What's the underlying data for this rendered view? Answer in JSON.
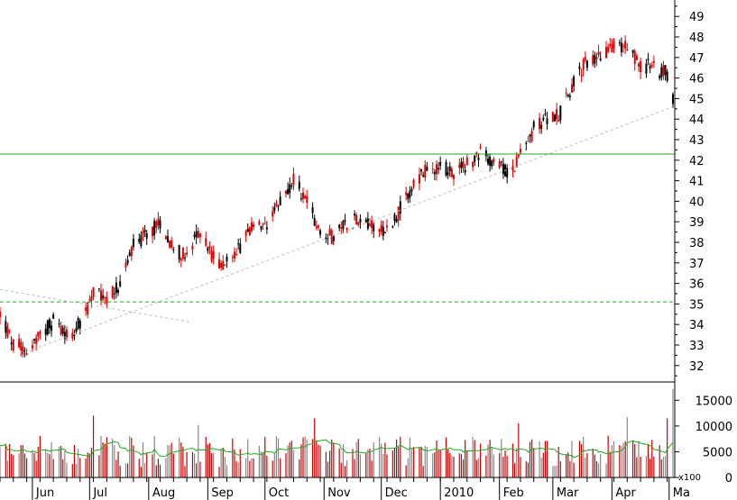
{
  "chart_data": [
    {
      "type": "candlestick",
      "panel": "price",
      "title": "",
      "xlabel": "",
      "ylabel": "",
      "ylim": [
        31.2,
        49.8
      ],
      "y_ticks": [
        32,
        33,
        34,
        35,
        36,
        37,
        38,
        39,
        40,
        41,
        42,
        43,
        44,
        45,
        46,
        47,
        48,
        49
      ],
      "up_color": "#000000",
      "down_color": "#e00000",
      "x_range": [
        "2009-05-15",
        "2010-05-03"
      ],
      "anchors": [
        [
          "2009-05-15",
          34.5
        ],
        [
          "2009-05-22",
          33.0
        ],
        [
          "2009-05-29",
          32.8
        ],
        [
          "2009-06-05",
          33.4
        ],
        [
          "2009-06-12",
          34.2
        ],
        [
          "2009-06-19",
          33.5
        ],
        [
          "2009-06-26",
          34.0
        ],
        [
          "2009-07-03",
          35.5
        ],
        [
          "2009-07-10",
          35.2
        ],
        [
          "2009-07-17",
          36.0
        ],
        [
          "2009-07-24",
          37.8
        ],
        [
          "2009-07-31",
          38.3
        ],
        [
          "2009-08-07",
          39.0
        ],
        [
          "2009-08-14",
          37.8
        ],
        [
          "2009-08-21",
          37.2
        ],
        [
          "2009-08-28",
          38.6
        ],
        [
          "2009-09-04",
          37.2
        ],
        [
          "2009-09-11",
          37.0
        ],
        [
          "2009-09-18",
          37.8
        ],
        [
          "2009-09-25",
          38.8
        ],
        [
          "2009-10-02",
          38.5
        ],
        [
          "2009-10-09",
          40.0
        ],
        [
          "2009-10-16",
          41.0
        ],
        [
          "2009-10-23",
          40.0
        ],
        [
          "2009-10-30",
          38.6
        ],
        [
          "2009-11-06",
          38.2
        ],
        [
          "2009-11-13",
          39.0
        ],
        [
          "2009-11-20",
          39.2
        ],
        [
          "2009-11-27",
          38.9
        ],
        [
          "2009-12-04",
          38.6
        ],
        [
          "2009-12-11",
          39.6
        ],
        [
          "2009-12-18",
          40.8
        ],
        [
          "2009-12-25",
          41.5
        ],
        [
          "2010-01-01",
          41.8
        ],
        [
          "2010-01-08",
          41.3
        ],
        [
          "2010-01-15",
          41.8
        ],
        [
          "2010-01-22",
          42.3
        ],
        [
          "2010-01-29",
          42.0
        ],
        [
          "2010-02-05",
          41.3
        ],
        [
          "2010-02-12",
          42.2
        ],
        [
          "2010-02-19",
          43.5
        ],
        [
          "2010-02-26",
          44.0
        ],
        [
          "2010-03-05",
          44.3
        ],
        [
          "2010-03-12",
          45.8
        ],
        [
          "2010-03-19",
          46.8
        ],
        [
          "2010-03-26",
          47.2
        ],
        [
          "2010-04-02",
          47.5
        ],
        [
          "2010-04-09",
          47.6
        ],
        [
          "2010-04-16",
          46.6
        ],
        [
          "2010-04-23",
          46.5
        ],
        [
          "2010-04-30",
          46.2
        ],
        [
          "2010-05-03",
          45.0
        ]
      ],
      "reference_lines": [
        {
          "y": 42.3,
          "color": "#22aa22",
          "style": "solid"
        },
        {
          "y": 35.1,
          "color": "#22aa22",
          "style": "dashed"
        }
      ],
      "trendlines": [
        {
          "from": [
            "2009-05-30",
            32.7
          ],
          "to": [
            "2010-05-03",
            44.6
          ],
          "color": "#bbbbbb",
          "style": "dashed"
        },
        {
          "from": [
            "2009-05-15",
            35.7
          ],
          "to": [
            "2009-08-24",
            34.1
          ],
          "color": "#bbbbbb",
          "style": "dashed"
        }
      ]
    },
    {
      "type": "bar",
      "panel": "volume",
      "title": "",
      "ylim": [
        0,
        17500
      ],
      "y_ticks": [
        0,
        5000,
        10000,
        15000
      ],
      "multiplier_label": "x100",
      "bar_color": "#cc0000",
      "ma_color": "#22aa22",
      "average": 5800,
      "spikes": [
        {
          "date": "2009-07-03",
          "value": 12000
        },
        {
          "date": "2009-08-27",
          "value": 10200
        },
        {
          "date": "2009-10-27",
          "value": 11500
        },
        {
          "date": "2010-02-11",
          "value": 10500
        },
        {
          "date": "2010-04-09",
          "value": 11700
        },
        {
          "date": "2010-04-30",
          "value": 11500
        },
        {
          "date": "2010-05-03",
          "value": 17200
        }
      ]
    }
  ],
  "x_axis": {
    "months": [
      {
        "label": "Jun",
        "date": "2009-06-01"
      },
      {
        "label": "Jul",
        "date": "2009-07-01"
      },
      {
        "label": "Aug",
        "date": "2009-08-01"
      },
      {
        "label": "Sep",
        "date": "2009-09-01"
      },
      {
        "label": "Oct",
        "date": "2009-10-01"
      },
      {
        "label": "Nov",
        "date": "2009-11-01"
      },
      {
        "label": "Dec",
        "date": "2009-12-01"
      },
      {
        "label": "2010",
        "date": "2010-01-01"
      },
      {
        "label": "Feb",
        "date": "2010-02-01"
      },
      {
        "label": "Mar",
        "date": "2010-03-01"
      },
      {
        "label": "Apr",
        "date": "2010-04-01"
      },
      {
        "label": "Ma",
        "date": "2010-05-01"
      }
    ]
  }
}
